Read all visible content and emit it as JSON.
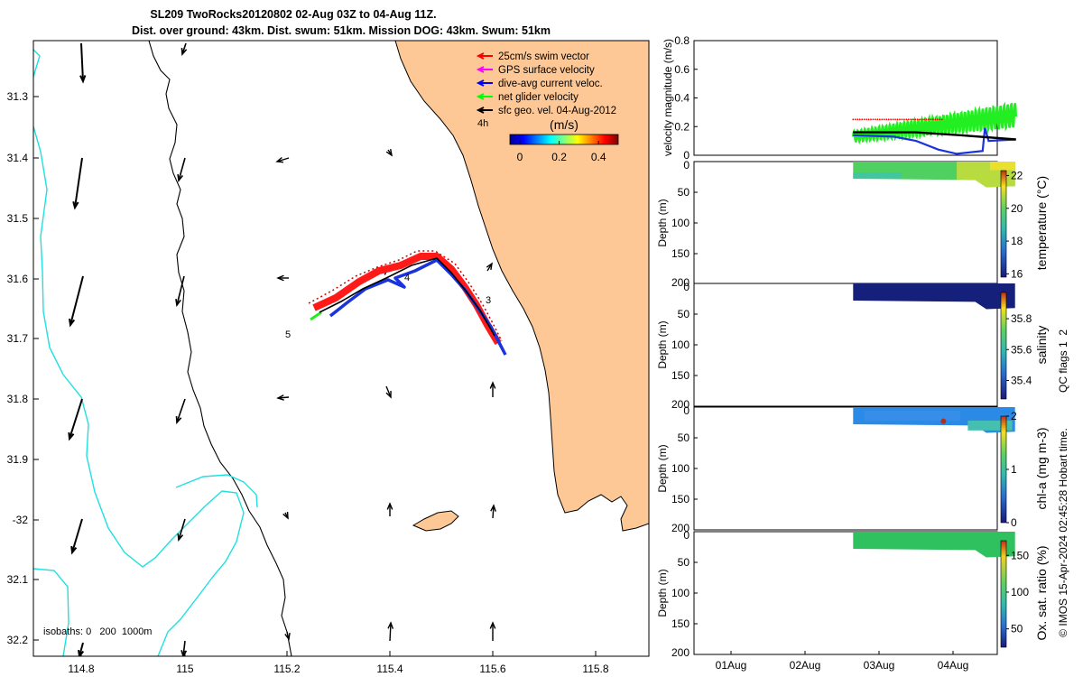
{
  "chart_data": {
    "title": {
      "line1": "SL209 TwoRocks20120802 02-Aug 03Z to 04-Aug 11Z.",
      "line2": "Dist. over ground: 43km. Dist. swum: 51km. Mission DOG: 43km. Swum: 51km"
    },
    "map": {
      "type": "map",
      "lon_ticks": [
        "114.8",
        "115",
        "115.2",
        "115.4",
        "115.6",
        "115.8"
      ],
      "lat_ticks": [
        "31.3",
        "31.4",
        "31.5",
        "31.6",
        "31.7",
        "31.8",
        "31.9",
        "-32",
        "32.1",
        "32.2"
      ],
      "isobaths_label": "isobaths: 0   200  1000m",
      "vector_scale_label": "4h",
      "day_labels": [
        "3",
        "4",
        "5"
      ],
      "legend": [
        {
          "label": "25cm/s swim vector",
          "color": "#ff0000"
        },
        {
          "label": "GPS surface velocity",
          "color": "#ff00ff"
        },
        {
          "label": "dive-avg current veloc.",
          "color": "#0000ff"
        },
        {
          "label": "net glider velocity",
          "color": "#00ff00"
        },
        {
          "label": "sfc geo. vel. 04-Aug-2012",
          "color": "#000000"
        }
      ],
      "colorbar": {
        "title": "(m/s)",
        "ticks": [
          "0",
          "0.2",
          "0.4"
        ],
        "range": [
          -0.05,
          0.5
        ]
      }
    },
    "velocity": {
      "type": "line",
      "ylabel": "velocity magnitude (m/s)",
      "ylim": [
        0,
        0.8
      ],
      "yticks": [
        "0",
        "0.2",
        "0.4",
        "0.6",
        "0.8"
      ],
      "x_days_range": [
        0.0,
        4.35
      ],
      "series": [
        {
          "name": "net glider velocity",
          "color": "#22ee22",
          "start": 2.15,
          "end": 4.35,
          "base_start": 0.13,
          "base_end": 0.28,
          "amplitude": 0.06
        },
        {
          "name": "dive-avg current veloc.",
          "color": "#1a33dd",
          "points": [
            [
              2.15,
              0.14
            ],
            [
              2.7,
              0.13
            ],
            [
              3.0,
              0.1
            ],
            [
              3.3,
              0.04
            ],
            [
              3.55,
              0.01
            ],
            [
              3.9,
              0.03
            ],
            [
              3.93,
              0.19
            ],
            [
              3.98,
              0.1
            ],
            [
              4.35,
              0.11
            ]
          ]
        },
        {
          "name": "sfc geo. vel.",
          "color": "#000000",
          "points": [
            [
              2.15,
              0.16
            ],
            [
              3.0,
              0.16
            ],
            [
              3.6,
              0.14
            ],
            [
              4.35,
              0.11
            ]
          ]
        },
        {
          "name": "GPS surface velocity",
          "color": "#ff0000",
          "level": 0.25
        }
      ]
    },
    "sections": [
      {
        "name": "temperature",
        "cb_label": "temperature (°C)",
        "cb_ticks": [
          "16",
          "18",
          "20",
          "22"
        ],
        "ylabel": "Depth (m)",
        "yticks": [
          "0",
          "50",
          "100",
          "150",
          "200"
        ]
      },
      {
        "name": "salinity",
        "cb_label": "salinity",
        "cb_ticks": [
          "35.4",
          "35.6",
          "35.8"
        ],
        "ylabel": "Depth (m)",
        "yticks": [
          "0",
          "50",
          "100",
          "150",
          "200"
        ]
      },
      {
        "name": "chl-a",
        "cb_label": "chl-a (mg m-3)",
        "cb_ticks": [
          "0",
          "1",
          "2"
        ],
        "ylabel": "Depth (m)",
        "yticks": [
          "0",
          "50",
          "100",
          "150",
          "200"
        ]
      },
      {
        "name": "oxygen",
        "cb_label": "Ox. sat. ratio (%)",
        "cb_ticks": [
          "50",
          "100",
          "150"
        ],
        "ylabel": "Depth (m)",
        "yticks": [
          "0",
          "50",
          "100",
          "150",
          "200"
        ]
      }
    ],
    "time_ticks": [
      "01Aug",
      "02Aug",
      "03Aug",
      "04Aug"
    ],
    "qc_label": "QC flags 1  2",
    "credit": "© IMOS 15-Apr-2024 02:45:28 Hobart time."
  }
}
